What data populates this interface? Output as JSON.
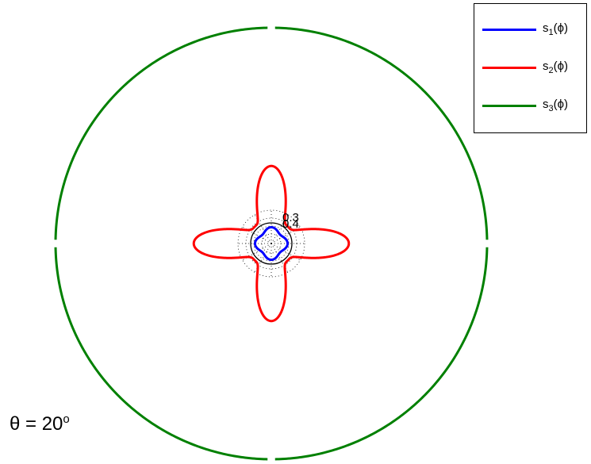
{
  "chart_data": {
    "type": "polar-line",
    "r_ticks": [
      0.1,
      0.2,
      0.3,
      0.4
    ],
    "r_tick_labels_shown": [
      "0.3",
      "0.4"
    ],
    "grid": "dotted",
    "legend_position": "top-right",
    "annotation": {
      "symbol": "θ = 20",
      "sup": "o"
    },
    "series": [
      {
        "label_base": "s",
        "label_sub": "1",
        "label_arg": "(ϕ)",
        "color": "#0000ff",
        "r0": 0.43,
        "a4": 0.035
      },
      {
        "label_base": "s",
        "label_sub": "2",
        "label_arg": "(ϕ)",
        "color": "#ff0000",
        "r0": 0.62,
        "amplitude": 1.0,
        "power": 4
      },
      {
        "label_base": "s",
        "label_sub": "3",
        "label_arg": "(ϕ)",
        "color": "#008000",
        "r0": 3.4,
        "a4": 0
      }
    ]
  }
}
